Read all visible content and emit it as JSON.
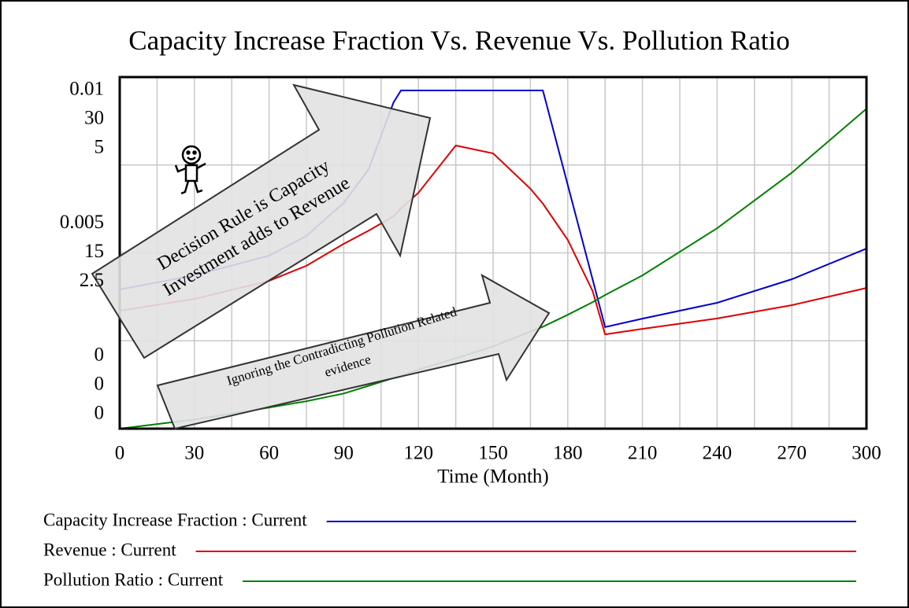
{
  "chart_data": {
    "type": "line",
    "title": "Capacity Increase Fraction Vs. Revenue Vs. Pollution Ratio",
    "x_label": "Time (Month)",
    "x": [
      0,
      30,
      60,
      75,
      90,
      100,
      110,
      113,
      120,
      135,
      150,
      165,
      170,
      180,
      190,
      195,
      210,
      240,
      270,
      300
    ],
    "xlim": [
      0,
      300
    ],
    "xticks": [
      0,
      30,
      60,
      90,
      120,
      150,
      180,
      210,
      240,
      270,
      300
    ],
    "grid": true,
    "series": [
      {
        "name": "Capacity Increase Fraction : Current",
        "color": "#0000cc",
        "ylim": [
          0,
          0.01
        ],
        "yticks": [
          0,
          0.005,
          0.01
        ],
        "values": [
          0.00396,
          0.00436,
          0.00492,
          0.00548,
          0.00642,
          0.00738,
          0.00928,
          0.00962,
          0.00962,
          0.00962,
          0.00962,
          0.00962,
          0.00962,
          0.00693,
          0.00424,
          0.00289,
          0.00313,
          0.00358,
          0.00425,
          0.00512
        ]
      },
      {
        "name": "Revenue : Current",
        "color": "#dd0000",
        "ylim": [
          0,
          30
        ],
        "yticks": [
          0,
          15,
          30
        ],
        "values": [
          10.07,
          11.07,
          12.62,
          13.9,
          15.77,
          16.9,
          18.12,
          18.8,
          20.13,
          24.16,
          23.49,
          20.47,
          19.2,
          16.11,
          11.74,
          8.05,
          8.52,
          9.4,
          10.54,
          12.01
        ]
      },
      {
        "name": "Pollution Ratio : Current",
        "color": "#008000",
        "ylim": [
          0,
          5
        ],
        "yticks": [
          0,
          2.5,
          5
        ],
        "values": [
          0,
          0.13,
          0.3,
          0.39,
          0.5,
          0.61,
          0.72,
          0.75,
          0.84,
          1.0,
          1.17,
          1.38,
          1.45,
          1.62,
          1.8,
          1.9,
          2.18,
          2.85,
          3.64,
          4.55
        ]
      }
    ],
    "annotations": [
      {
        "lines": [
          "Decision Rule is Capacity",
          "Investment adds to Revenue"
        ]
      },
      {
        "lines": [
          "Ignoring the Contradicting Pollution Related",
          "evidence"
        ]
      }
    ]
  }
}
